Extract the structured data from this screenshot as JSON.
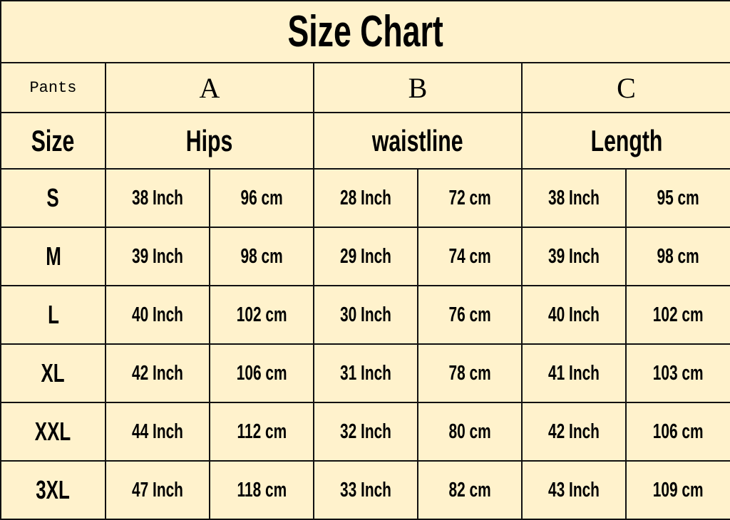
{
  "title": "Size Chart",
  "category": "Pants",
  "group_letters": [
    "A",
    "B",
    "C"
  ],
  "size_header": "Size",
  "measurements": [
    "Hips",
    "waistline",
    "Length"
  ],
  "colors": {
    "background": "#fff2cc",
    "border": "#111111",
    "text": "#000000"
  },
  "rows": [
    {
      "size": "S",
      "values": [
        "38 Inch",
        "96 cm",
        "28 Inch",
        "72 cm",
        "38 Inch",
        "95 cm"
      ]
    },
    {
      "size": "M",
      "values": [
        "39 Inch",
        "98 cm",
        "29 Inch",
        "74 cm",
        "39 Inch",
        "98 cm"
      ]
    },
    {
      "size": "L",
      "values": [
        "40 Inch",
        "102 cm",
        "30 Inch",
        "76 cm",
        "40 Inch",
        "102 cm"
      ]
    },
    {
      "size": "XL",
      "values": [
        "42 Inch",
        "106 cm",
        "31 Inch",
        "78 cm",
        "41 Inch",
        "103 cm"
      ]
    },
    {
      "size": "XXL",
      "values": [
        "44 Inch",
        "112 cm",
        "32 Inch",
        "80 cm",
        "42 Inch",
        "106 cm"
      ]
    },
    {
      "size": "3XL",
      "values": [
        "47 Inch",
        "118 cm",
        "33 Inch",
        "82 cm",
        "43 Inch",
        "109 cm"
      ]
    }
  ]
}
